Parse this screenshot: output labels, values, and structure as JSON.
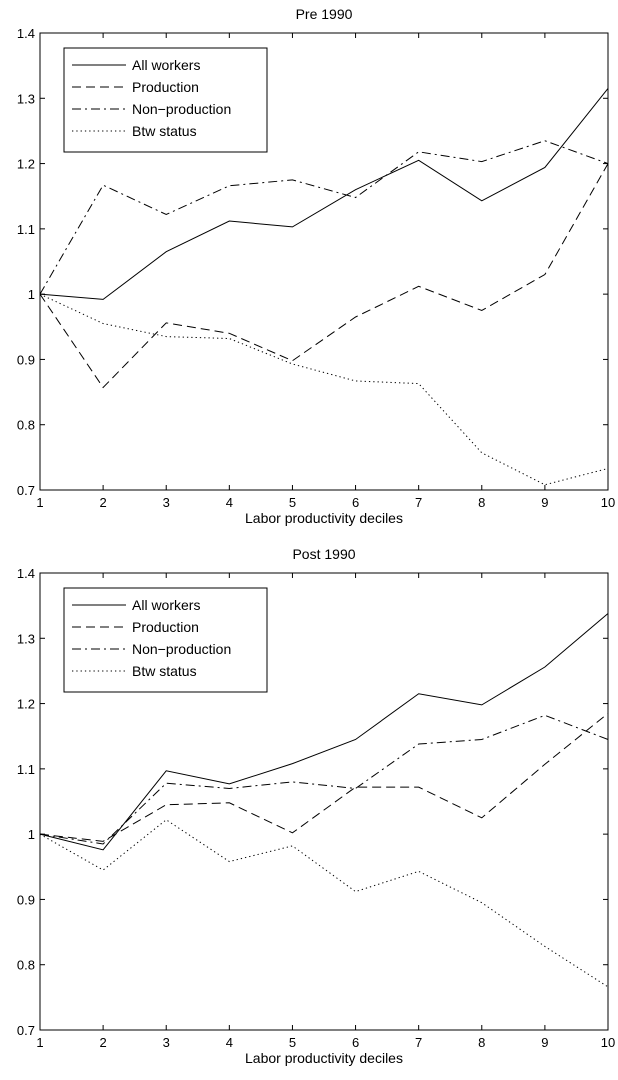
{
  "chart_data": [
    {
      "type": "line",
      "title": "Pre 1990",
      "xlabel": "Labor productivity deciles",
      "ylabel": "",
      "x": [
        1,
        2,
        3,
        4,
        5,
        6,
        7,
        8,
        9,
        10
      ],
      "xlim": [
        1,
        10
      ],
      "ylim": [
        0.7,
        1.4
      ],
      "xticks": [
        "1",
        "2",
        "3",
        "4",
        "5",
        "6",
        "7",
        "8",
        "9",
        "10"
      ],
      "yticks": [
        "0.7",
        "0.8",
        "0.9",
        "1",
        "1.1",
        "1.2",
        "1.3",
        "1.4"
      ],
      "grid": false,
      "legend_position": "top-left",
      "series": [
        {
          "name": "All workers",
          "style": "solid",
          "values": [
            1.0,
            0.992,
            1.065,
            1.112,
            1.103,
            1.16,
            1.205,
            1.143,
            1.194,
            1.315
          ]
        },
        {
          "name": "Production",
          "style": "dashed",
          "values": [
            1.0,
            0.857,
            0.956,
            0.94,
            0.898,
            0.965,
            1.012,
            0.975,
            1.03,
            1.2
          ]
        },
        {
          "name": "Non−production",
          "style": "dashdot",
          "values": [
            1.0,
            1.167,
            1.122,
            1.166,
            1.175,
            1.148,
            1.218,
            1.203,
            1.235,
            1.2
          ]
        },
        {
          "name": "Btw status",
          "style": "dotted",
          "values": [
            1.0,
            0.955,
            0.935,
            0.932,
            0.893,
            0.867,
            0.863,
            0.757,
            0.708,
            0.733
          ]
        }
      ]
    },
    {
      "type": "line",
      "title": "Post 1990",
      "xlabel": "Labor productivity deciles",
      "ylabel": "",
      "x": [
        1,
        2,
        3,
        4,
        5,
        6,
        7,
        8,
        9,
        10
      ],
      "xlim": [
        1,
        10
      ],
      "ylim": [
        0.7,
        1.4
      ],
      "xticks": [
        "1",
        "2",
        "3",
        "4",
        "5",
        "6",
        "7",
        "8",
        "9",
        "10"
      ],
      "yticks": [
        "0.7",
        "0.8",
        "0.9",
        "1",
        "1.1",
        "1.2",
        "1.3",
        "1.4"
      ],
      "grid": false,
      "legend_position": "top-left",
      "series": [
        {
          "name": "All workers",
          "style": "solid",
          "values": [
            1.0,
            0.976,
            1.097,
            1.077,
            1.108,
            1.145,
            1.215,
            1.198,
            1.256,
            1.338
          ]
        },
        {
          "name": "Production",
          "style": "dashed",
          "values": [
            1.0,
            0.989,
            1.045,
            1.048,
            1.002,
            1.072,
            1.072,
            1.025,
            1.107,
            1.185
          ]
        },
        {
          "name": "Non−production",
          "style": "dashdot",
          "values": [
            1.0,
            0.985,
            1.078,
            1.07,
            1.08,
            1.07,
            1.138,
            1.145,
            1.182,
            1.145
          ]
        },
        {
          "name": "Btw status",
          "style": "dotted",
          "values": [
            1.0,
            0.945,
            1.022,
            0.958,
            0.982,
            0.912,
            0.943,
            0.895,
            0.828,
            0.766
          ]
        }
      ]
    }
  ]
}
